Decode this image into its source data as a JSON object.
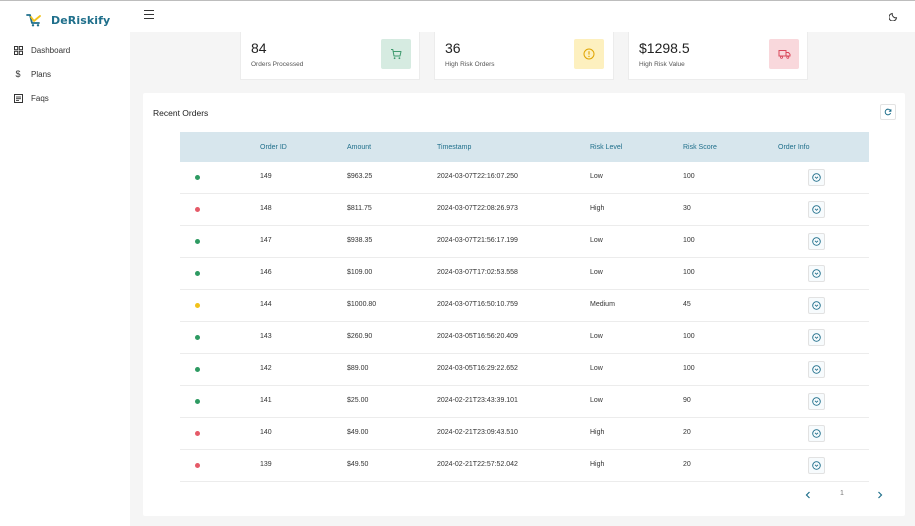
{
  "brand": {
    "name": "DeRiskify"
  },
  "sidebar": {
    "items": [
      {
        "label": "Dashboard",
        "icon": "dashboard-icon"
      },
      {
        "label": "Plans",
        "icon": "dollar-icon"
      },
      {
        "label": "Faqs",
        "icon": "faq-icon"
      }
    ]
  },
  "header": {
    "menu_icon": "hamburger-icon",
    "theme_icon": "moon-icon"
  },
  "stats": [
    {
      "value": "84",
      "label": "Orders Processed",
      "icon": "cart-icon",
      "bg": "#d6ebe1",
      "fg": "#3f9a6e"
    },
    {
      "value": "36",
      "label": "High Risk Orders",
      "icon": "alert-icon",
      "bg": "#fdf0bf",
      "fg": "#e0a400"
    },
    {
      "value": "$1298.5",
      "label": "High Risk Value",
      "icon": "truck-icon",
      "bg": "#f9d8dc",
      "fg": "#d9475a"
    }
  ],
  "orders": {
    "title": "Recent Orders",
    "columns": [
      "Order ID",
      "Amount",
      "Timestamp",
      "Risk Level",
      "Risk Score",
      "Order Info"
    ],
    "status_colors": {
      "Low": "#2e9a62",
      "High": "#e55a68",
      "Medium": "#f2c21b"
    },
    "rows": [
      {
        "id": "149",
        "amount": "$963.25",
        "timestamp": "2024-03-07T22:16:07.250",
        "risk_level": "Low",
        "risk_score": "100"
      },
      {
        "id": "148",
        "amount": "$811.75",
        "timestamp": "2024-03-07T22:08:26.973",
        "risk_level": "High",
        "risk_score": "30"
      },
      {
        "id": "147",
        "amount": "$938.35",
        "timestamp": "2024-03-07T21:56:17.199",
        "risk_level": "Low",
        "risk_score": "100"
      },
      {
        "id": "146",
        "amount": "$109.00",
        "timestamp": "2024-03-07T17:02:53.558",
        "risk_level": "Low",
        "risk_score": "100"
      },
      {
        "id": "144",
        "amount": "$1000.80",
        "timestamp": "2024-03-07T16:50:10.759",
        "risk_level": "Medium",
        "risk_score": "45"
      },
      {
        "id": "143",
        "amount": "$260.90",
        "timestamp": "2024-03-05T16:56:20.409",
        "risk_level": "Low",
        "risk_score": "100"
      },
      {
        "id": "142",
        "amount": "$89.00",
        "timestamp": "2024-03-05T16:29:22.652",
        "risk_level": "Low",
        "risk_score": "100"
      },
      {
        "id": "141",
        "amount": "$25.00",
        "timestamp": "2024-02-21T23:43:39.101",
        "risk_level": "Low",
        "risk_score": "90"
      },
      {
        "id": "140",
        "amount": "$49.00",
        "timestamp": "2024-02-21T23:09:43.510",
        "risk_level": "High",
        "risk_score": "20"
      },
      {
        "id": "139",
        "amount": "$49.50",
        "timestamp": "2024-02-21T22:57:52.042",
        "risk_level": "High",
        "risk_score": "20"
      }
    ]
  },
  "pagination": {
    "current_page": "1"
  }
}
